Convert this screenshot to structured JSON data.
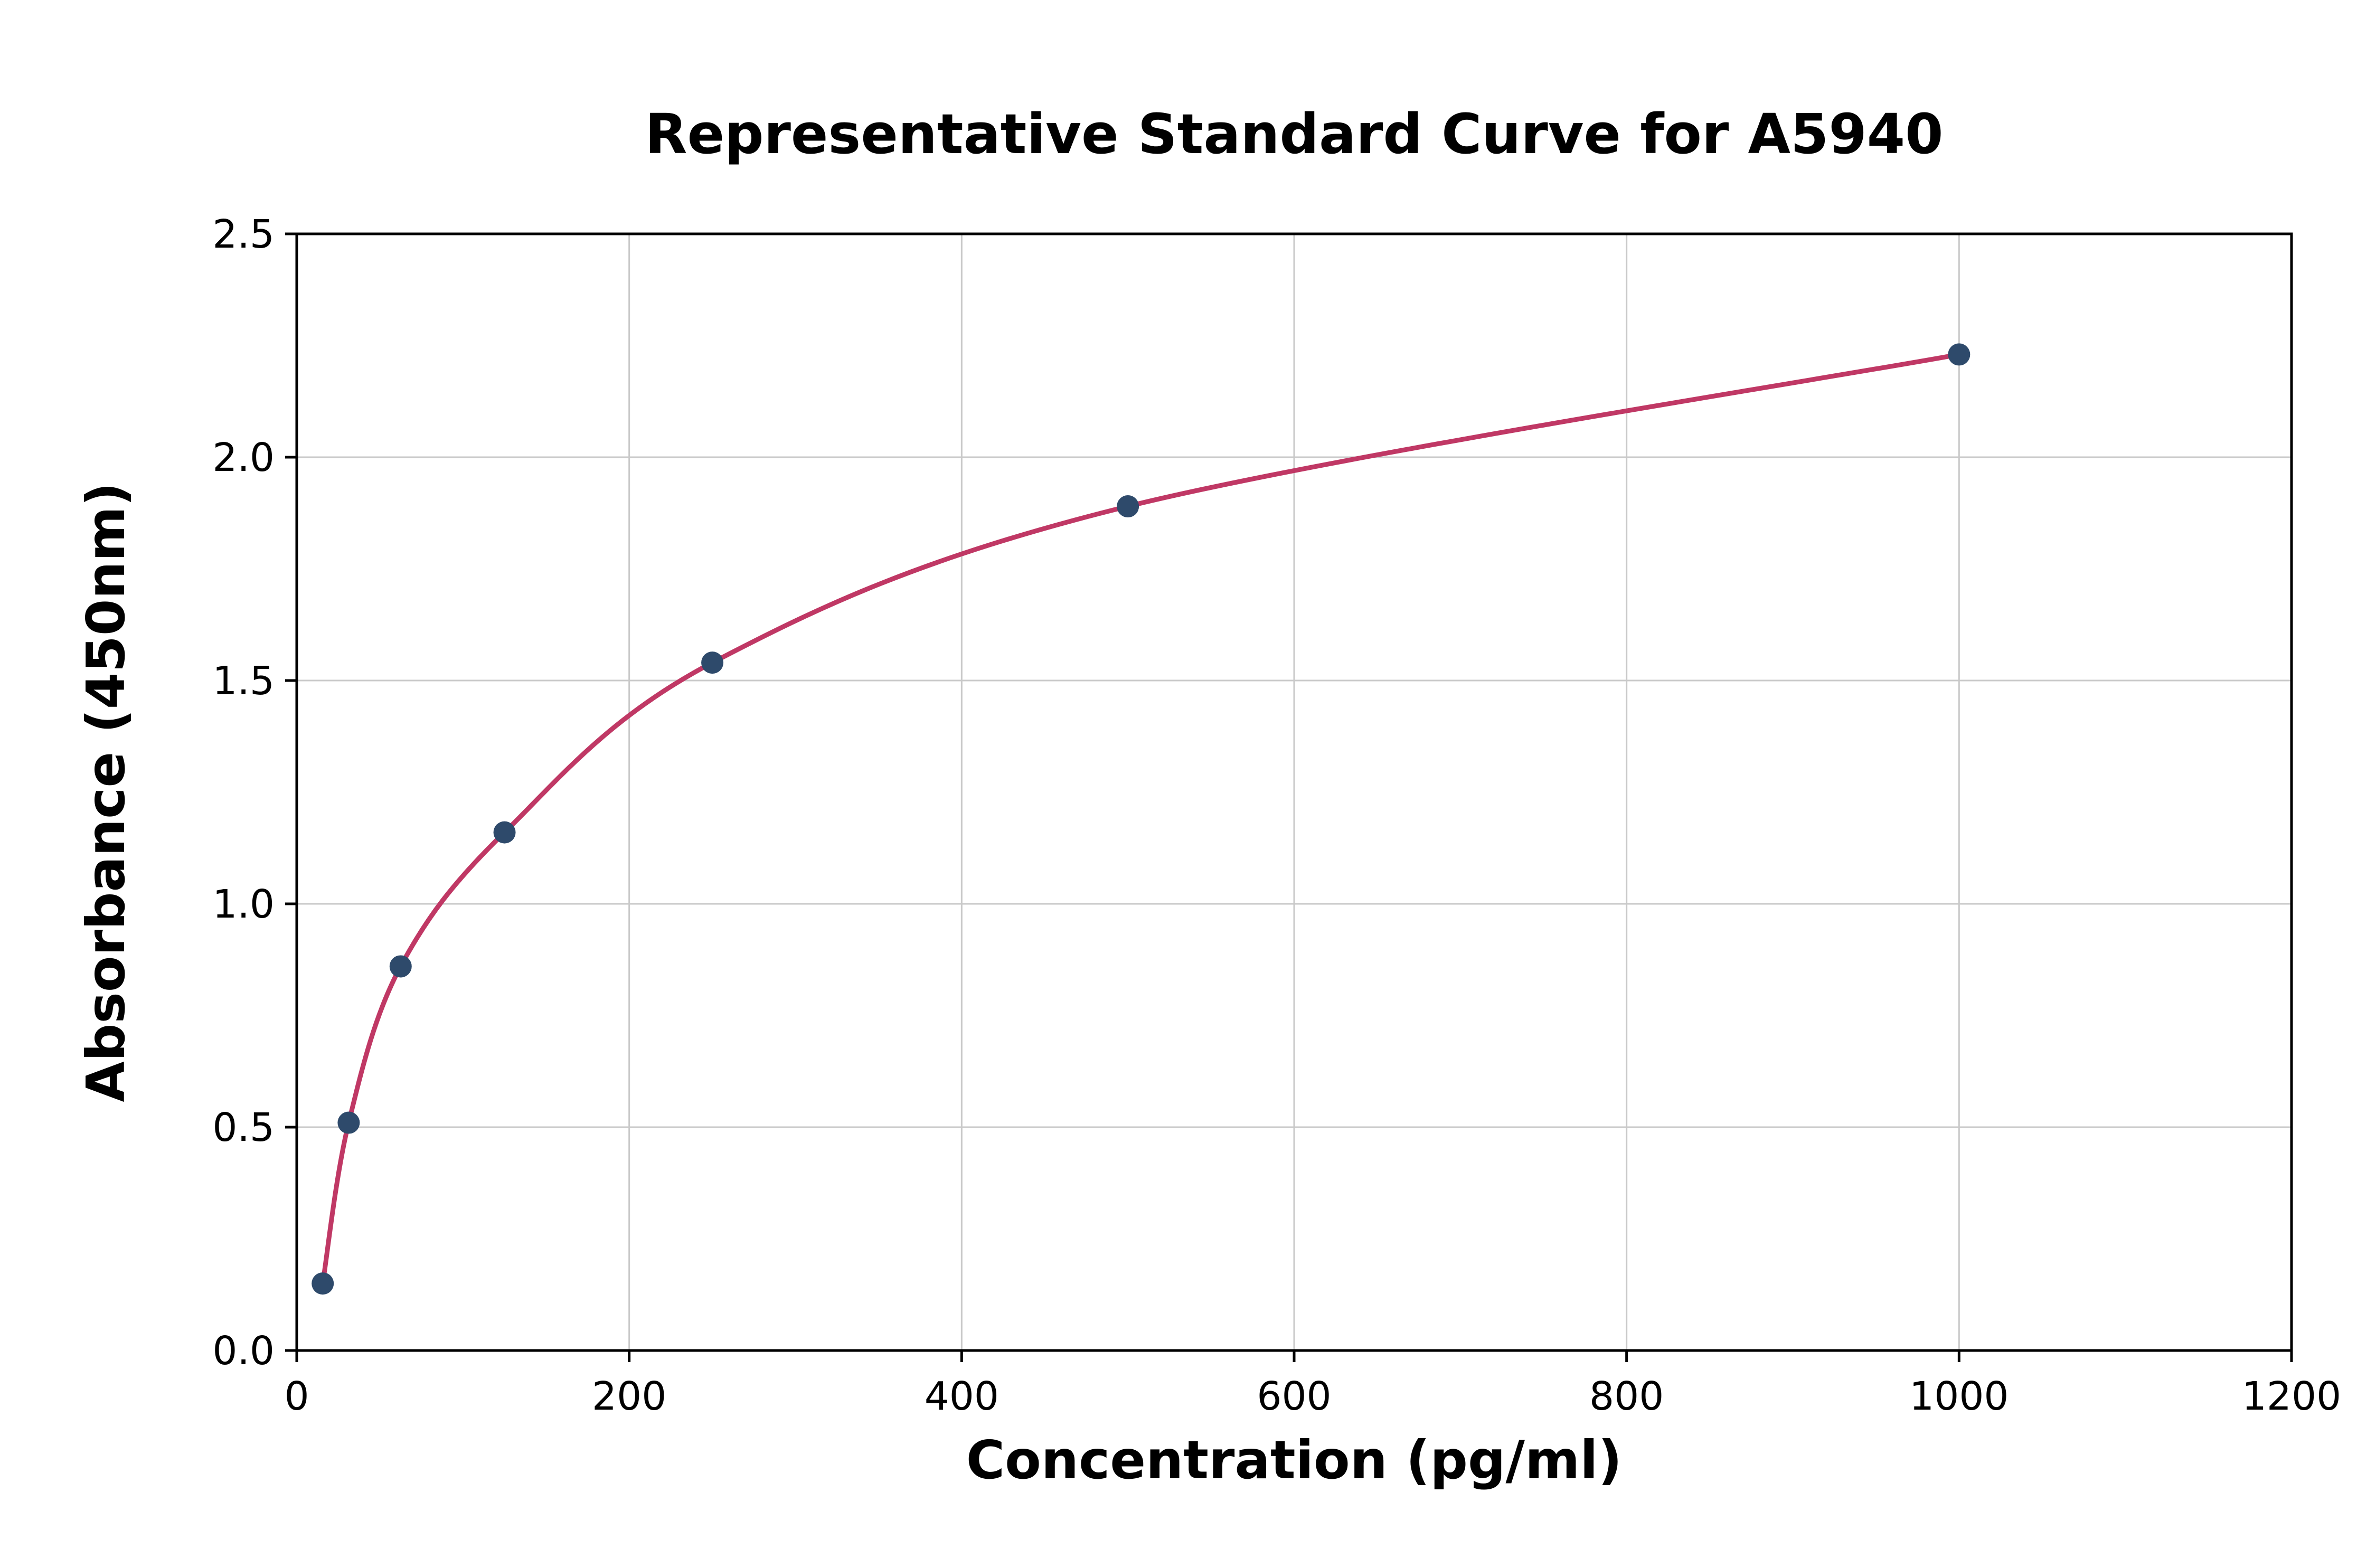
{
  "page": {
    "background": "#ffffff"
  },
  "chart_data": {
    "type": "scatter",
    "title": "Representative Standard Curve for A5940",
    "xlabel": "Concentration (pg/ml)",
    "ylabel": "Absorbance (450nm)",
    "xlim": [
      0,
      1200
    ],
    "ylim": [
      0.0,
      2.5
    ],
    "xticks": [
      0,
      200,
      400,
      600,
      800,
      1000,
      1200
    ],
    "xtick_labels": [
      "0",
      "200",
      "400",
      "600",
      "800",
      "1000",
      "1200"
    ],
    "yticks": [
      0.0,
      0.5,
      1.0,
      1.5,
      2.0,
      2.5
    ],
    "ytick_labels": [
      "0.0",
      "0.5",
      "1.0",
      "1.5",
      "2.0",
      "2.5"
    ],
    "grid": true,
    "legend_position": "none",
    "series": [
      {
        "name": "standard-curve",
        "type": "line+scatter",
        "x": [
          15.63,
          31.25,
          62.5,
          125,
          250,
          500,
          1000
        ],
        "y": [
          0.15,
          0.51,
          0.86,
          1.16,
          1.54,
          1.89,
          2.23
        ]
      }
    ],
    "colors": {
      "curve": "#c03865",
      "marker": "#2e4a6b",
      "grid": "#c9c9c9",
      "axis": "#000000",
      "background": "#ffffff"
    }
  }
}
